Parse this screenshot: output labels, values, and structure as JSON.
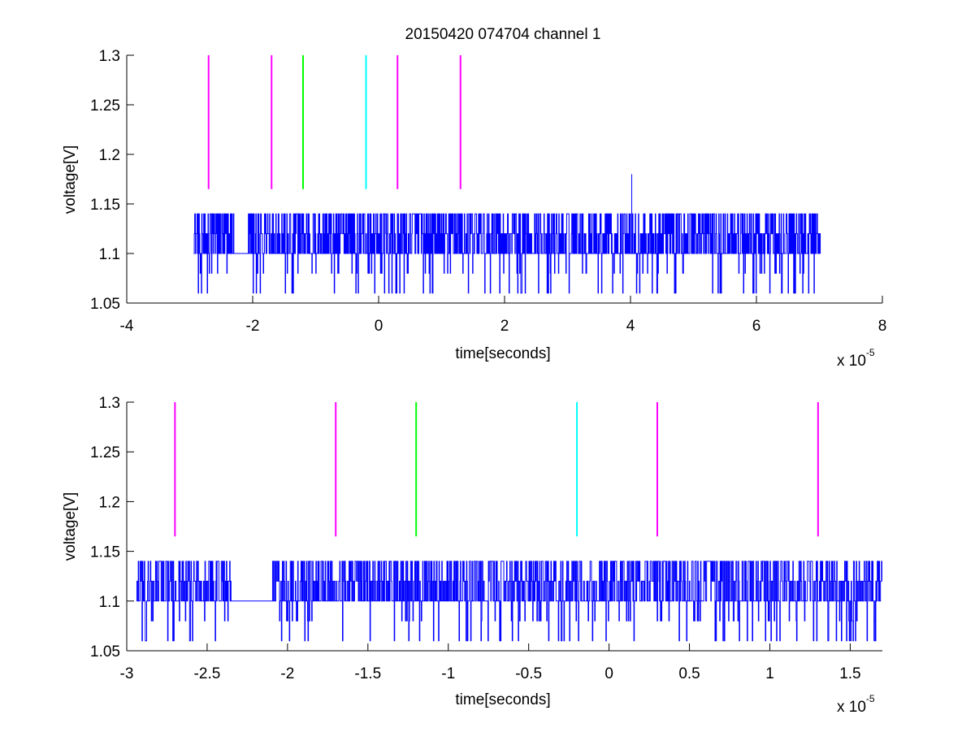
{
  "figure": {
    "title": "20150420 074704 channel 1",
    "background": "#ffffff"
  },
  "chart_data": [
    {
      "type": "line",
      "title": "20150420 074704 channel 1",
      "xlabel": "time[seconds]",
      "ylabel": "voltage[V]",
      "x_exponent_label": "x 10",
      "x_exponent": "-5",
      "xlim": [
        -4e-05,
        8e-05
      ],
      "ylim": [
        1.05,
        1.3
      ],
      "xticks": [
        -4e-05,
        -2e-05,
        0,
        2e-05,
        4e-05,
        6e-05,
        8e-05
      ],
      "xtick_labels": [
        "-4",
        "-2",
        "0",
        "2",
        "4",
        "6",
        "8"
      ],
      "yticks": [
        1.05,
        1.1,
        1.15,
        1.2,
        1.25,
        1.3
      ],
      "ytick_labels": [
        "1.05",
        "1.1",
        "1.15",
        "1.2",
        "1.25",
        "1.3"
      ],
      "grid": false,
      "signal": {
        "color": "#0000ff",
        "x_start": -2.94e-05,
        "x_end": 7.02e-05,
        "baseline": 1.1,
        "levels": [
          1.06,
          1.08,
          1.1,
          1.12,
          1.14
        ],
        "spike": {
          "x": 4.02e-05,
          "y": 1.18
        }
      },
      "markers": [
        {
          "x": -2.7e-05,
          "y_range": [
            1.165,
            1.3
          ],
          "color": "#ff00ff"
        },
        {
          "x": -1.7e-05,
          "y_range": [
            1.165,
            1.3
          ],
          "color": "#ff00ff"
        },
        {
          "x": -1.2e-05,
          "y_range": [
            1.165,
            1.3
          ],
          "color": "#00ff00"
        },
        {
          "x": -2e-06,
          "y_range": [
            1.165,
            1.3
          ],
          "color": "#00ffff"
        },
        {
          "x": 3e-06,
          "y_range": [
            1.165,
            1.3
          ],
          "color": "#ff00ff"
        },
        {
          "x": 1.3e-05,
          "y_range": [
            1.165,
            1.3
          ],
          "color": "#ff00ff"
        }
      ]
    },
    {
      "type": "line",
      "title": "",
      "xlabel": "time[seconds]",
      "ylabel": "voltage[V]",
      "x_exponent_label": "x 10",
      "x_exponent": "-5",
      "xlim": [
        -3e-05,
        1.7e-05
      ],
      "ylim": [
        1.05,
        1.3
      ],
      "xticks": [
        -3e-05,
        -2.5e-05,
        -2e-05,
        -1.5e-05,
        -1e-05,
        -5e-06,
        0,
        5e-06,
        1e-05,
        1.5e-05
      ],
      "xtick_labels": [
        "-3",
        "-2.5",
        "-2",
        "-1.5",
        "-1",
        "-0.5",
        "0",
        "0.5",
        "1",
        "1.5"
      ],
      "yticks": [
        1.05,
        1.1,
        1.15,
        1.2,
        1.25,
        1.3
      ],
      "ytick_labels": [
        "1.05",
        "1.1",
        "1.15",
        "1.2",
        "1.25",
        "1.3"
      ],
      "grid": false,
      "signal": {
        "color": "#0000ff",
        "x_start": -2.94e-05,
        "x_end": 1.7e-05,
        "baseline": 1.1,
        "levels": [
          1.06,
          1.08,
          1.1,
          1.12,
          1.14
        ]
      },
      "markers": [
        {
          "x": -2.7e-05,
          "y_range": [
            1.165,
            1.3
          ],
          "color": "#ff00ff"
        },
        {
          "x": -1.7e-05,
          "y_range": [
            1.165,
            1.3
          ],
          "color": "#ff00ff"
        },
        {
          "x": -1.2e-05,
          "y_range": [
            1.165,
            1.3
          ],
          "color": "#00ff00"
        },
        {
          "x": -2e-06,
          "y_range": [
            1.165,
            1.3
          ],
          "color": "#00ffff"
        },
        {
          "x": 3e-06,
          "y_range": [
            1.165,
            1.3
          ],
          "color": "#ff00ff"
        },
        {
          "x": 1.3e-05,
          "y_range": [
            1.165,
            1.3
          ],
          "color": "#ff00ff"
        }
      ]
    }
  ]
}
